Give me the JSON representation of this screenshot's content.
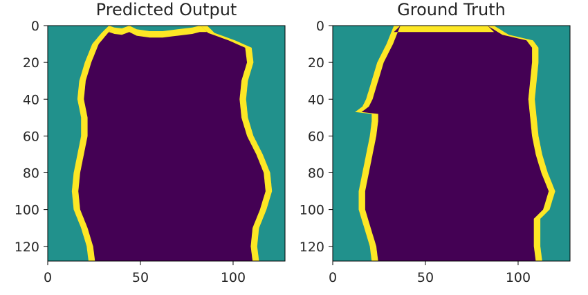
{
  "figure": {
    "colors": {
      "teal": "#21918c",
      "purple": "#440154",
      "yellow": "#fde725"
    },
    "panels": [
      "predicted",
      "ground_truth"
    ]
  },
  "chart_data": [
    {
      "type": "heatmap",
      "title": "Predicted Output",
      "colormap": "viridis",
      "classes": [
        "background",
        "boundary",
        "interior"
      ],
      "class_colors": {
        "background": "#21918c",
        "boundary": "#fde725",
        "interior": "#440154"
      },
      "xlim": [
        0,
        128
      ],
      "ylim": [
        128,
        0
      ],
      "xticks": [
        0,
        50,
        100
      ],
      "yticks": [
        0,
        20,
        40,
        60,
        80,
        100,
        120
      ],
      "boundary_width": 3.5,
      "left_boundary": [
        [
          0,
          33
        ],
        [
          4,
          29
        ],
        [
          10,
          24
        ],
        [
          20,
          20
        ],
        [
          30,
          17
        ],
        [
          40,
          16
        ],
        [
          50,
          18
        ],
        [
          60,
          18
        ],
        [
          70,
          16
        ],
        [
          80,
          14
        ],
        [
          90,
          13
        ],
        [
          100,
          14
        ],
        [
          110,
          18
        ],
        [
          120,
          21
        ],
        [
          128,
          22
        ]
      ],
      "right_boundary": [
        [
          0,
          86
        ],
        [
          4,
          90
        ],
        [
          8,
          101
        ],
        [
          12,
          110
        ],
        [
          20,
          111
        ],
        [
          30,
          108
        ],
        [
          40,
          107
        ],
        [
          50,
          108
        ],
        [
          60,
          111
        ],
        [
          70,
          116
        ],
        [
          80,
          120
        ],
        [
          90,
          121
        ],
        [
          100,
          118
        ],
        [
          110,
          114
        ],
        [
          120,
          113
        ],
        [
          128,
          114
        ]
      ],
      "top_boundary": [
        [
          33,
          0
        ],
        [
          36,
          1
        ],
        [
          40,
          1.5
        ],
        [
          44,
          0
        ],
        [
          48,
          2
        ],
        [
          55,
          3
        ],
        [
          62,
          3
        ],
        [
          70,
          2
        ],
        [
          78,
          1
        ],
        [
          82,
          0
        ],
        [
          86,
          0
        ]
      ]
    },
    {
      "type": "heatmap",
      "title": "Ground Truth",
      "colormap": "viridis",
      "classes": [
        "background",
        "boundary",
        "interior"
      ],
      "class_colors": {
        "background": "#21918c",
        "boundary": "#fde725",
        "interior": "#440154"
      },
      "xlim": [
        0,
        128
      ],
      "ylim": [
        128,
        0
      ],
      "xticks": [
        0,
        50,
        100
      ],
      "yticks": [
        0,
        20,
        40,
        60,
        80,
        100,
        120
      ],
      "boundary_width": 3.5,
      "left_boundary": [
        [
          0,
          33
        ],
        [
          10,
          29
        ],
        [
          20,
          24
        ],
        [
          30,
          21
        ],
        [
          40,
          18
        ],
        [
          44,
          16
        ],
        [
          47,
          12
        ],
        [
          48,
          21
        ],
        [
          52,
          21
        ],
        [
          60,
          20
        ],
        [
          70,
          18
        ],
        [
          80,
          16
        ],
        [
          90,
          14
        ],
        [
          100,
          14
        ],
        [
          110,
          17
        ],
        [
          120,
          20
        ],
        [
          128,
          21
        ]
      ],
      "right_boundary": [
        [
          0,
          87
        ],
        [
          5,
          95
        ],
        [
          8,
          108
        ],
        [
          12,
          111
        ],
        [
          20,
          111
        ],
        [
          30,
          110
        ],
        [
          40,
          109
        ],
        [
          50,
          110
        ],
        [
          60,
          111
        ],
        [
          70,
          113
        ],
        [
          80,
          116
        ],
        [
          90,
          120
        ],
        [
          100,
          117
        ],
        [
          105,
          112
        ],
        [
          110,
          112
        ],
        [
          120,
          112
        ],
        [
          128,
          113
        ]
      ],
      "top_boundary": [
        [
          33,
          0
        ],
        [
          40,
          0
        ],
        [
          50,
          0
        ],
        [
          60,
          0
        ],
        [
          70,
          0
        ],
        [
          80,
          0
        ],
        [
          87,
          0
        ]
      ]
    }
  ]
}
